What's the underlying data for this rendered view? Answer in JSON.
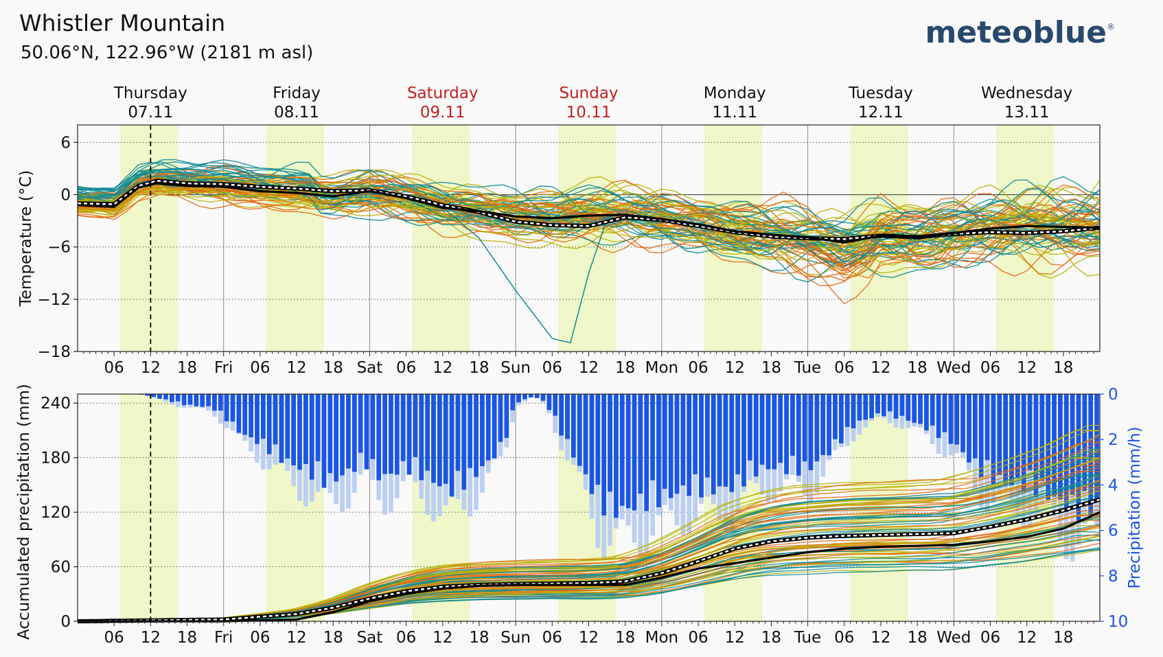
{
  "header": {
    "title": "Whistler Mountain",
    "subtitle": "50.06°N, 122.96°W (2181 m asl)",
    "brand": "meteoblue",
    "brand_mark": "®"
  },
  "colors": {
    "background": "#f9f9f9",
    "daylight": "#eff7c8",
    "weekend": "#c41e1e",
    "mean": "#000000",
    "precip_bar": "#1a55e6",
    "precip_bar_light": "#bccff3",
    "precip_axis": "#1a55e6",
    "ensemble": [
      "#e26a14",
      "#b8b40a",
      "#0f8a93"
    ]
  },
  "chart_data": [
    {
      "type": "line",
      "name": "temperature",
      "ylabel": "Temperature (°C)",
      "ylim": [
        -18,
        8
      ],
      "yticks": [
        6,
        0,
        -6,
        -12,
        -18
      ],
      "yticklabels": [
        "6",
        "0",
        "−6",
        "−12",
        "−18"
      ],
      "xlim_hours": [
        0,
        168
      ],
      "now_hour": 12,
      "days": [
        {
          "name": "Thursday",
          "date": "07.11",
          "weekend": false
        },
        {
          "name": "Friday",
          "date": "08.11",
          "weekend": false
        },
        {
          "name": "Saturday",
          "date": "09.11",
          "weekend": true
        },
        {
          "name": "Sunday",
          "date": "10.11",
          "weekend": true
        },
        {
          "name": "Monday",
          "date": "11.11",
          "weekend": false
        },
        {
          "name": "Tuesday",
          "date": "12.11",
          "weekend": false
        },
        {
          "name": "Wednesday",
          "date": "13.11",
          "weekend": false
        }
      ],
      "x_tick_labels": [
        "06",
        "12",
        "18",
        "Fri",
        "06",
        "12",
        "18",
        "Sat",
        "06",
        "12",
        "18",
        "Sun",
        "06",
        "12",
        "18",
        "Mon",
        "06",
        "12",
        "18",
        "Tue",
        "06",
        "12",
        "18",
        "Wed",
        "06",
        "12",
        "18"
      ],
      "x_tick_hours": [
        6,
        12,
        18,
        24,
        30,
        36,
        42,
        48,
        54,
        60,
        66,
        72,
        78,
        84,
        90,
        96,
        102,
        108,
        114,
        120,
        126,
        132,
        138,
        144,
        150,
        156,
        162
      ],
      "daylight_hours": [
        [
          7,
          16.5
        ],
        [
          31,
          40.5
        ],
        [
          55,
          64.5
        ],
        [
          79,
          88.5
        ],
        [
          103,
          112.5
        ],
        [
          127,
          136.5
        ],
        [
          151,
          160.5
        ]
      ],
      "mean_keypoints": [
        [
          0,
          -1.2
        ],
        [
          6,
          -1.4
        ],
        [
          10,
          0.8
        ],
        [
          13,
          1.3
        ],
        [
          18,
          1.0
        ],
        [
          24,
          0.9
        ],
        [
          30,
          0.4
        ],
        [
          36,
          0.2
        ],
        [
          42,
          -0.2
        ],
        [
          48,
          0.4
        ],
        [
          54,
          -0.4
        ],
        [
          60,
          -1.5
        ],
        [
          66,
          -1.9
        ],
        [
          72,
          -2.5
        ],
        [
          78,
          -2.7
        ],
        [
          84,
          -2.4
        ],
        [
          90,
          -2.3
        ],
        [
          96,
          -2.8
        ],
        [
          102,
          -3.4
        ],
        [
          108,
          -4.2
        ],
        [
          114,
          -4.6
        ],
        [
          120,
          -4.9
        ],
        [
          126,
          -5.5
        ],
        [
          132,
          -4.7
        ],
        [
          138,
          -4.9
        ],
        [
          144,
          -4.4
        ],
        [
          150,
          -3.9
        ],
        [
          156,
          -3.6
        ],
        [
          162,
          -3.7
        ],
        [
          168,
          -3.8
        ]
      ],
      "median_keypoints": [
        [
          0,
          -1.0
        ],
        [
          6,
          -1.1
        ],
        [
          10,
          1.0
        ],
        [
          13,
          1.6
        ],
        [
          18,
          1.3
        ],
        [
          24,
          1.2
        ],
        [
          30,
          0.9
        ],
        [
          36,
          0.7
        ],
        [
          42,
          0.4
        ],
        [
          48,
          0.5
        ],
        [
          54,
          -0.2
        ],
        [
          60,
          -1.2
        ],
        [
          66,
          -2.0
        ],
        [
          72,
          -3.1
        ],
        [
          78,
          -3.5
        ],
        [
          84,
          -3.6
        ],
        [
          90,
          -2.6
        ],
        [
          96,
          -2.9
        ],
        [
          102,
          -3.6
        ],
        [
          108,
          -4.3
        ],
        [
          114,
          -4.8
        ],
        [
          120,
          -5.0
        ],
        [
          126,
          -5.1
        ],
        [
          132,
          -4.7
        ],
        [
          138,
          -4.9
        ],
        [
          144,
          -4.5
        ],
        [
          150,
          -4.3
        ],
        [
          156,
          -4.4
        ],
        [
          162,
          -4.2
        ],
        [
          168,
          -3.8
        ]
      ],
      "outlier_keypoints": [
        [
          60,
          -1.5
        ],
        [
          66,
          -5.0
        ],
        [
          72,
          -11.0
        ],
        [
          78,
          -16.5
        ],
        [
          81,
          -17.0
        ],
        [
          84,
          -9.0
        ],
        [
          87,
          -2.8
        ]
      ],
      "ensemble_members": 72
    },
    {
      "type": "bar",
      "name": "precipitation",
      "ylabel": "Accumulated precipitation (mm)",
      "ylabel_right": "Precipitation (mm/h)",
      "ylim": [
        0,
        250
      ],
      "yticks": [
        240,
        180,
        120,
        60,
        0
      ],
      "yticklabels": [
        "240",
        "180",
        "120",
        "60",
        "0"
      ],
      "ylim_right": [
        0,
        10
      ],
      "yticks_right": [
        "0",
        "2",
        "4",
        "6",
        "8",
        "10"
      ],
      "bar_hours_note": "hourly bars 0-168",
      "intensity_keypoints_mmh": [
        [
          0,
          0
        ],
        [
          10,
          0
        ],
        [
          12,
          0.1
        ],
        [
          15,
          0.3
        ],
        [
          18,
          0.5
        ],
        [
          22,
          0.6
        ],
        [
          24,
          1.0
        ],
        [
          27,
          1.8
        ],
        [
          30,
          2.2
        ],
        [
          34,
          3.0
        ],
        [
          38,
          3.5
        ],
        [
          41,
          4.0
        ],
        [
          44,
          3.6
        ],
        [
          47,
          3.0
        ],
        [
          50,
          3.8
        ],
        [
          54,
          3.3
        ],
        [
          58,
          3.8
        ],
        [
          61,
          4.4
        ],
        [
          64,
          3.9
        ],
        [
          67,
          3.2
        ],
        [
          70,
          2.3
        ],
        [
          72,
          0.4
        ],
        [
          75,
          0.1
        ],
        [
          77,
          0.4
        ],
        [
          80,
          2.0
        ],
        [
          83,
          3.5
        ],
        [
          86,
          5.0
        ],
        [
          89,
          5.3
        ],
        [
          92,
          5.0
        ],
        [
          96,
          4.7
        ],
        [
          100,
          4.3
        ],
        [
          104,
          4.3
        ],
        [
          108,
          4.2
        ],
        [
          111,
          3.5
        ],
        [
          114,
          3.3
        ],
        [
          118,
          3.4
        ],
        [
          120,
          3.4
        ],
        [
          124,
          2.5
        ],
        [
          128,
          1.3
        ],
        [
          132,
          0.9
        ],
        [
          136,
          1.1
        ],
        [
          140,
          1.6
        ],
        [
          144,
          2.2
        ],
        [
          148,
          3.4
        ],
        [
          152,
          4.0
        ],
        [
          156,
          4.1
        ],
        [
          160,
          4.6
        ],
        [
          164,
          5.3
        ],
        [
          168,
          5.0
        ]
      ],
      "mean_accum_keypoints": [
        [
          0,
          0
        ],
        [
          24,
          0
        ],
        [
          36,
          2
        ],
        [
          42,
          10
        ],
        [
          48,
          22
        ],
        [
          54,
          30
        ],
        [
          60,
          36
        ],
        [
          66,
          39
        ],
        [
          72,
          40
        ],
        [
          78,
          40
        ],
        [
          84,
          40
        ],
        [
          90,
          40
        ],
        [
          96,
          48
        ],
        [
          102,
          58
        ],
        [
          108,
          64
        ],
        [
          114,
          70
        ],
        [
          120,
          76
        ],
        [
          126,
          80
        ],
        [
          132,
          82
        ],
        [
          138,
          83
        ],
        [
          144,
          84
        ],
        [
          150,
          88
        ],
        [
          156,
          93
        ],
        [
          162,
          102
        ],
        [
          168,
          120
        ]
      ],
      "median_accum_keypoints": [
        [
          0,
          0
        ],
        [
          24,
          2
        ],
        [
          36,
          8
        ],
        [
          42,
          15
        ],
        [
          48,
          25
        ],
        [
          54,
          33
        ],
        [
          60,
          38
        ],
        [
          66,
          40
        ],
        [
          72,
          41
        ],
        [
          84,
          42
        ],
        [
          90,
          44
        ],
        [
          96,
          53
        ],
        [
          102,
          66
        ],
        [
          108,
          80
        ],
        [
          114,
          88
        ],
        [
          120,
          92
        ],
        [
          126,
          94
        ],
        [
          132,
          95
        ],
        [
          138,
          96
        ],
        [
          144,
          97
        ],
        [
          150,
          104
        ],
        [
          156,
          112
        ],
        [
          162,
          122
        ],
        [
          168,
          134
        ]
      ],
      "ensemble_members": 72
    }
  ]
}
